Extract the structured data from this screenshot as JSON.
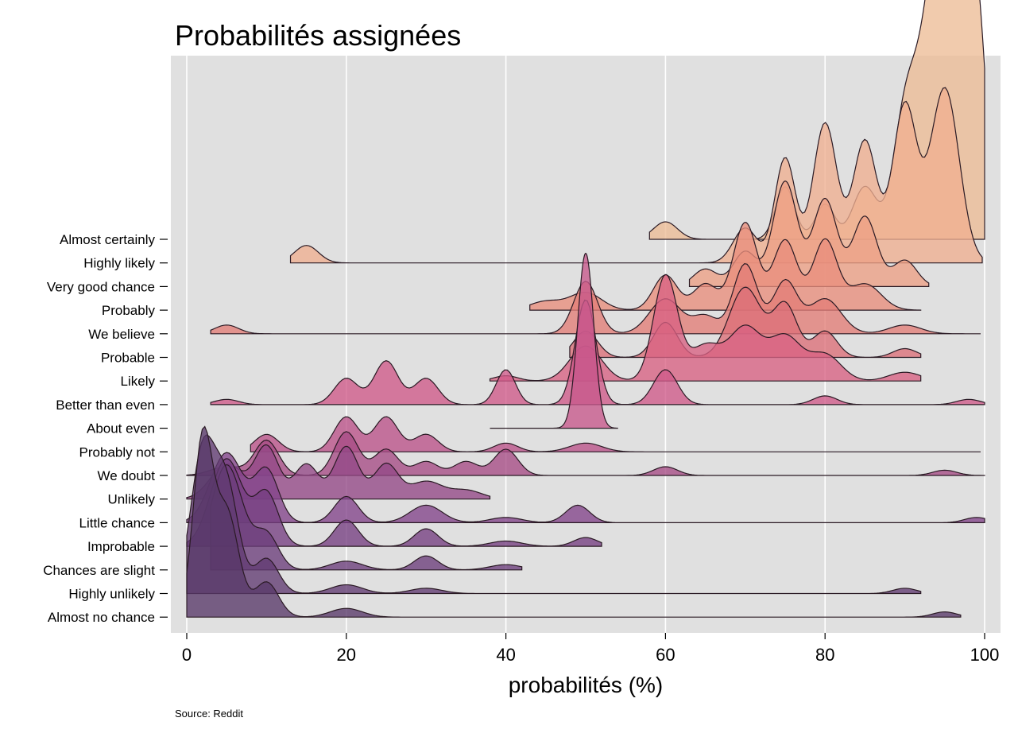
{
  "chart_data": {
    "type": "ridgeline",
    "title": "Probabilités assignées",
    "xlabel": "probabilités (%)",
    "caption": "Source: Reddit",
    "xlim": [
      0,
      100
    ],
    "xticks": [
      0,
      20,
      40,
      60,
      80,
      100
    ],
    "grid": true,
    "legend": "none",
    "panel_color": "#e0e0e0",
    "series": [
      {
        "name": "Almost certainly",
        "color": "#edbd96",
        "range": [
          58,
          100
        ],
        "peaks": [
          [
            60,
            1,
            1.5
          ],
          [
            75,
            3,
            1.2
          ],
          [
            80,
            2,
            1.2
          ],
          [
            85,
            3,
            1.5
          ],
          [
            90,
            6,
            1.5
          ],
          [
            95,
            20,
            2.5
          ],
          [
            99,
            10,
            1.2
          ]
        ]
      },
      {
        "name": "Highly likely",
        "color": "#efb091",
        "range": [
          13,
          99.7
        ],
        "peaks": [
          [
            15,
            1,
            1.5
          ],
          [
            70,
            2,
            1.5
          ],
          [
            75,
            6,
            1.3
          ],
          [
            80,
            8,
            1.5
          ],
          [
            85,
            7,
            1.5
          ],
          [
            90,
            9,
            1.5
          ],
          [
            95,
            10,
            1.8
          ]
        ]
      },
      {
        "name": "Very good chance",
        "color": "#eda085",
        "range": [
          63,
          93
        ],
        "peaks": [
          [
            65,
            1,
            1.5
          ],
          [
            70,
            2,
            1.5
          ],
          [
            75,
            6,
            1.5
          ],
          [
            80,
            5,
            1.5
          ],
          [
            85,
            4,
            1.5
          ],
          [
            90,
            1.5,
            1.5
          ]
        ]
      },
      {
        "name": "Probably",
        "color": "#e98e7c",
        "range": [
          43,
          92
        ],
        "peaks": [
          [
            45,
            0.5,
            2
          ],
          [
            50,
            1,
            2
          ],
          [
            60,
            2,
            1.5
          ],
          [
            65,
            1.5,
            1.5
          ],
          [
            70,
            5,
            1.5
          ],
          [
            75,
            4,
            1.5
          ],
          [
            80,
            4,
            1.5
          ],
          [
            85,
            1.5,
            2
          ]
        ]
      },
      {
        "name": "We believe",
        "color": "#e37e77",
        "range": [
          3,
          99.5
        ],
        "peaks": [
          [
            5,
            0.5,
            1.5
          ],
          [
            50,
            3,
            1.5
          ],
          [
            60,
            2,
            2
          ],
          [
            65,
            1,
            1.5
          ],
          [
            70,
            4,
            1.5
          ],
          [
            75,
            3,
            1.5
          ],
          [
            80,
            2,
            2
          ],
          [
            90,
            0.5,
            2
          ]
        ]
      },
      {
        "name": "Probable",
        "color": "#dd6f78",
        "range": [
          48,
          92
        ],
        "peaks": [
          [
            50,
            1.5,
            1.5
          ],
          [
            60,
            2,
            1.5
          ],
          [
            70,
            4,
            2
          ],
          [
            75,
            3,
            1.5
          ],
          [
            80,
            1.5,
            1.5
          ],
          [
            90,
            0.5,
            1.5
          ]
        ]
      },
      {
        "name": "Likely",
        "color": "#d86283",
        "range": [
          38,
          92
        ],
        "peaks": [
          [
            40,
            0.3,
            1.5
          ],
          [
            50,
            2,
            2
          ],
          [
            60,
            6,
            1.5
          ],
          [
            65,
            2,
            2
          ],
          [
            70,
            3,
            2
          ],
          [
            75,
            2.5,
            2
          ],
          [
            80,
            1.5,
            2
          ],
          [
            90,
            0.5,
            2
          ]
        ]
      },
      {
        "name": "Better than even",
        "color": "#d05a89",
        "range": [
          3,
          100
        ],
        "peaks": [
          [
            5,
            0.3,
            1.5
          ],
          [
            20,
            1.5,
            1.5
          ],
          [
            25,
            2.5,
            1.5
          ],
          [
            30,
            1.5,
            1.5
          ],
          [
            40,
            2,
            1.2
          ],
          [
            50,
            6,
            1.3
          ],
          [
            60,
            2,
            1.5
          ],
          [
            80,
            0.5,
            1.5
          ],
          [
            98,
            0.3,
            1.5
          ]
        ]
      },
      {
        "name": "About even",
        "color": "#c8588c",
        "range": [
          38,
          54
        ],
        "peaks": [
          [
            50,
            10,
            1
          ]
        ]
      },
      {
        "name": "Probably not",
        "color": "#bb5289",
        "range": [
          8,
          99.5
        ],
        "peaks": [
          [
            10,
            1,
            1.5
          ],
          [
            20,
            2,
            1.5
          ],
          [
            25,
            2,
            1.5
          ],
          [
            30,
            1,
            1.5
          ],
          [
            40,
            0.5,
            1.5
          ],
          [
            50,
            0.5,
            2
          ]
        ]
      },
      {
        "name": "We doubt",
        "color": "#a64c85",
        "range": [
          0,
          100
        ],
        "peaks": [
          [
            5,
            0.5,
            2
          ],
          [
            10,
            2,
            1.5
          ],
          [
            20,
            2.5,
            1.5
          ],
          [
            25,
            1.5,
            1.5
          ],
          [
            30,
            0.8,
            1.5
          ],
          [
            35,
            0.8,
            1.5
          ],
          [
            40,
            1.5,
            1.5
          ],
          [
            60,
            0.5,
            1.5
          ],
          [
            95,
            0.3,
            1.5
          ]
        ]
      },
      {
        "name": "Unlikely",
        "color": "#944886",
        "range": [
          0,
          38
        ],
        "peaks": [
          [
            5,
            2,
            2
          ],
          [
            10,
            3,
            1.5
          ],
          [
            15,
            2,
            1.5
          ],
          [
            20,
            3,
            1.5
          ],
          [
            25,
            2,
            1.5
          ],
          [
            30,
            1,
            2
          ],
          [
            35,
            0.5,
            2
          ]
        ]
      },
      {
        "name": "Little chance",
        "color": "#83448a",
        "range": [
          0,
          100
        ],
        "peaks": [
          [
            5,
            4,
            2
          ],
          [
            10,
            3,
            1.5
          ],
          [
            20,
            1.5,
            1.5
          ],
          [
            30,
            1,
            2
          ],
          [
            40,
            0.3,
            2
          ],
          [
            49,
            1,
            1.5
          ],
          [
            99,
            0.3,
            1.5
          ]
        ]
      },
      {
        "name": "Improbable",
        "color": "#763f82",
        "range": [
          0,
          52
        ],
        "peaks": [
          [
            5,
            5,
            2
          ],
          [
            10,
            3,
            1.5
          ],
          [
            20,
            1.5,
            1.5
          ],
          [
            30,
            1,
            1.5
          ],
          [
            40,
            0.3,
            2
          ],
          [
            50,
            0.5,
            1.5
          ]
        ]
      },
      {
        "name": "Chances are slight",
        "color": "#6b3d7b",
        "range": [
          3,
          42
        ],
        "peaks": [
          [
            5,
            6,
            2
          ],
          [
            10,
            2,
            1.5
          ],
          [
            20,
            0.5,
            2
          ],
          [
            30,
            0.8,
            1.5
          ],
          [
            40,
            0.3,
            2
          ]
        ]
      },
      {
        "name": "Highly unlikely",
        "color": "#623b72",
        "range": [
          0,
          92
        ],
        "peaks": [
          [
            2,
            8,
            1.5
          ],
          [
            5,
            6,
            1.5
          ],
          [
            10,
            2,
            1.5
          ],
          [
            20,
            0.5,
            2
          ],
          [
            30,
            0.3,
            2
          ],
          [
            90,
            0.3,
            1.5
          ]
        ]
      },
      {
        "name": "Almost no chance",
        "color": "#583869",
        "range": [
          0,
          97
        ],
        "peaks": [
          [
            2,
            10,
            1.2
          ],
          [
            5,
            6,
            1.5
          ],
          [
            10,
            2,
            1.5
          ],
          [
            20,
            0.5,
            2
          ],
          [
            95,
            0.3,
            1.5
          ]
        ]
      }
    ]
  }
}
